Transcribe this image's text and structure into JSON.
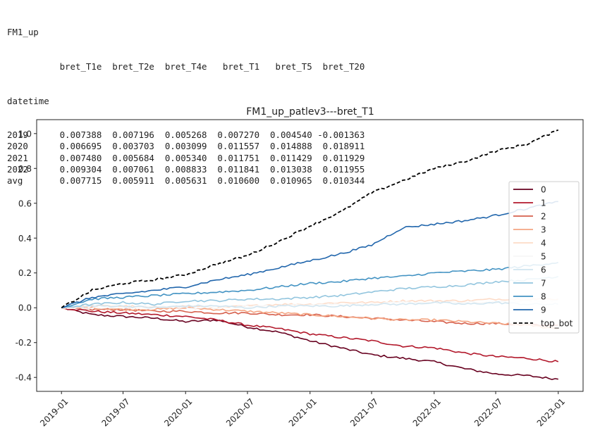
{
  "table": {
    "name": "FM1_up",
    "columns": [
      "bret_T1e",
      "bret_T2e",
      "bret_T4e",
      "bret_T1",
      "bret_T5",
      "bret_T20"
    ],
    "index_name": "datetime",
    "rows": [
      {
        "label": "2019",
        "values": [
          "0.007388",
          "0.007196",
          "0.005268",
          "0.007270",
          "0.004540",
          "-0.001363"
        ]
      },
      {
        "label": "2020",
        "values": [
          "0.006695",
          "0.003703",
          "0.003099",
          "0.011557",
          "0.014888",
          "0.018911"
        ]
      },
      {
        "label": "2021",
        "values": [
          "0.007480",
          "0.005684",
          "0.005340",
          "0.011751",
          "0.011429",
          "0.011929"
        ]
      },
      {
        "label": "2022",
        "values": [
          "0.009304",
          "0.007061",
          "0.008833",
          "0.011841",
          "0.013038",
          "0.011955"
        ]
      },
      {
        "label": "avg",
        "values": [
          "0.007715",
          "0.005911",
          "0.005631",
          "0.010600",
          "0.010965",
          "0.010344"
        ]
      }
    ]
  },
  "chart_data": {
    "type": "line",
    "title": "FM1_up_patlev3---bret_T1",
    "xlabel": "",
    "ylabel": "",
    "x_ticks": [
      "2019-01",
      "2019-07",
      "2020-01",
      "2020-07",
      "2021-01",
      "2021-07",
      "2022-01",
      "2022-07",
      "2023-01"
    ],
    "y_ticks": [
      "-0.4",
      "-0.2",
      "0.0",
      "0.2",
      "0.4",
      "0.6",
      "0.8",
      "1.0"
    ],
    "xlim": [
      "2018-10-20",
      "2023-03-15"
    ],
    "ylim": [
      -0.48,
      1.08
    ],
    "grid": false,
    "legend_position": "right",
    "x": [
      "2019-01",
      "2019-04",
      "2019-07",
      "2019-10",
      "2020-01",
      "2020-04",
      "2020-07",
      "2020-10",
      "2021-01",
      "2021-04",
      "2021-07",
      "2021-10",
      "2022-01",
      "2022-04",
      "2022-07",
      "2022-10",
      "2023-01"
    ],
    "series": [
      {
        "name": "0",
        "color": "#67001f",
        "dash": false,
        "values": [
          0.0,
          -0.04,
          -0.05,
          -0.06,
          -0.08,
          -0.07,
          -0.11,
          -0.14,
          -0.19,
          -0.23,
          -0.27,
          -0.29,
          -0.31,
          -0.35,
          -0.38,
          -0.39,
          -0.41
        ]
      },
      {
        "name": "1",
        "color": "#b2182b",
        "dash": false,
        "values": [
          0.0,
          -0.02,
          -0.03,
          -0.04,
          -0.05,
          -0.07,
          -0.1,
          -0.12,
          -0.15,
          -0.17,
          -0.19,
          -0.22,
          -0.23,
          -0.26,
          -0.28,
          -0.29,
          -0.31
        ]
      },
      {
        "name": "2",
        "color": "#d6604d",
        "dash": false,
        "values": [
          0.0,
          -0.01,
          -0.01,
          -0.02,
          -0.02,
          -0.03,
          -0.03,
          -0.04,
          -0.04,
          -0.05,
          -0.06,
          -0.07,
          -0.08,
          -0.09,
          -0.09,
          -0.1,
          -0.1
        ]
      },
      {
        "name": "3",
        "color": "#f4a582",
        "dash": false,
        "values": [
          0.0,
          0.0,
          -0.01,
          -0.01,
          0.0,
          -0.01,
          -0.02,
          -0.03,
          -0.04,
          -0.05,
          -0.06,
          -0.07,
          -0.07,
          -0.08,
          -0.09,
          -0.1,
          -0.12
        ]
      },
      {
        "name": "4",
        "color": "#fddbc7",
        "dash": false,
        "values": [
          0.0,
          0.01,
          0.01,
          0.0,
          0.01,
          0.0,
          0.01,
          0.02,
          0.02,
          0.03,
          0.03,
          0.04,
          0.04,
          0.04,
          0.05,
          0.05,
          0.05
        ]
      },
      {
        "name": "5",
        "color": "#f7f7f7",
        "dash": false,
        "values": [
          0.0,
          0.0,
          0.0,
          0.01,
          0.0,
          0.0,
          0.01,
          0.01,
          0.02,
          0.02,
          0.02,
          0.03,
          0.03,
          0.03,
          0.03,
          0.04,
          0.04
        ]
      },
      {
        "name": "6",
        "color": "#d1e5f0",
        "dash": false,
        "values": [
          0.0,
          0.01,
          0.01,
          0.0,
          0.01,
          0.01,
          0.0,
          0.01,
          0.01,
          0.01,
          0.02,
          0.02,
          0.03,
          0.02,
          0.03,
          0.02,
          0.02
        ]
      },
      {
        "name": "7",
        "color": "#92c5de",
        "dash": false,
        "values": [
          0.0,
          0.02,
          0.03,
          0.02,
          0.04,
          0.04,
          0.05,
          0.05,
          0.06,
          0.07,
          0.09,
          0.11,
          0.12,
          0.13,
          0.15,
          0.16,
          0.18
        ]
      },
      {
        "name": "8",
        "color": "#4393c3",
        "dash": false,
        "values": [
          0.0,
          0.05,
          0.06,
          0.07,
          0.08,
          0.09,
          0.1,
          0.12,
          0.14,
          0.15,
          0.17,
          0.18,
          0.2,
          0.21,
          0.22,
          0.24,
          0.26
        ]
      },
      {
        "name": "9",
        "color": "#2166ac",
        "dash": false,
        "values": [
          0.0,
          0.06,
          0.08,
          0.1,
          0.12,
          0.16,
          0.19,
          0.23,
          0.27,
          0.31,
          0.36,
          0.46,
          0.48,
          0.5,
          0.53,
          0.57,
          0.61
        ]
      },
      {
        "name": "top_bot",
        "color": "#000000",
        "dash": true,
        "values": [
          0.0,
          0.1,
          0.14,
          0.16,
          0.19,
          0.25,
          0.3,
          0.38,
          0.47,
          0.55,
          0.66,
          0.73,
          0.8,
          0.84,
          0.9,
          0.94,
          1.02
        ]
      }
    ]
  }
}
